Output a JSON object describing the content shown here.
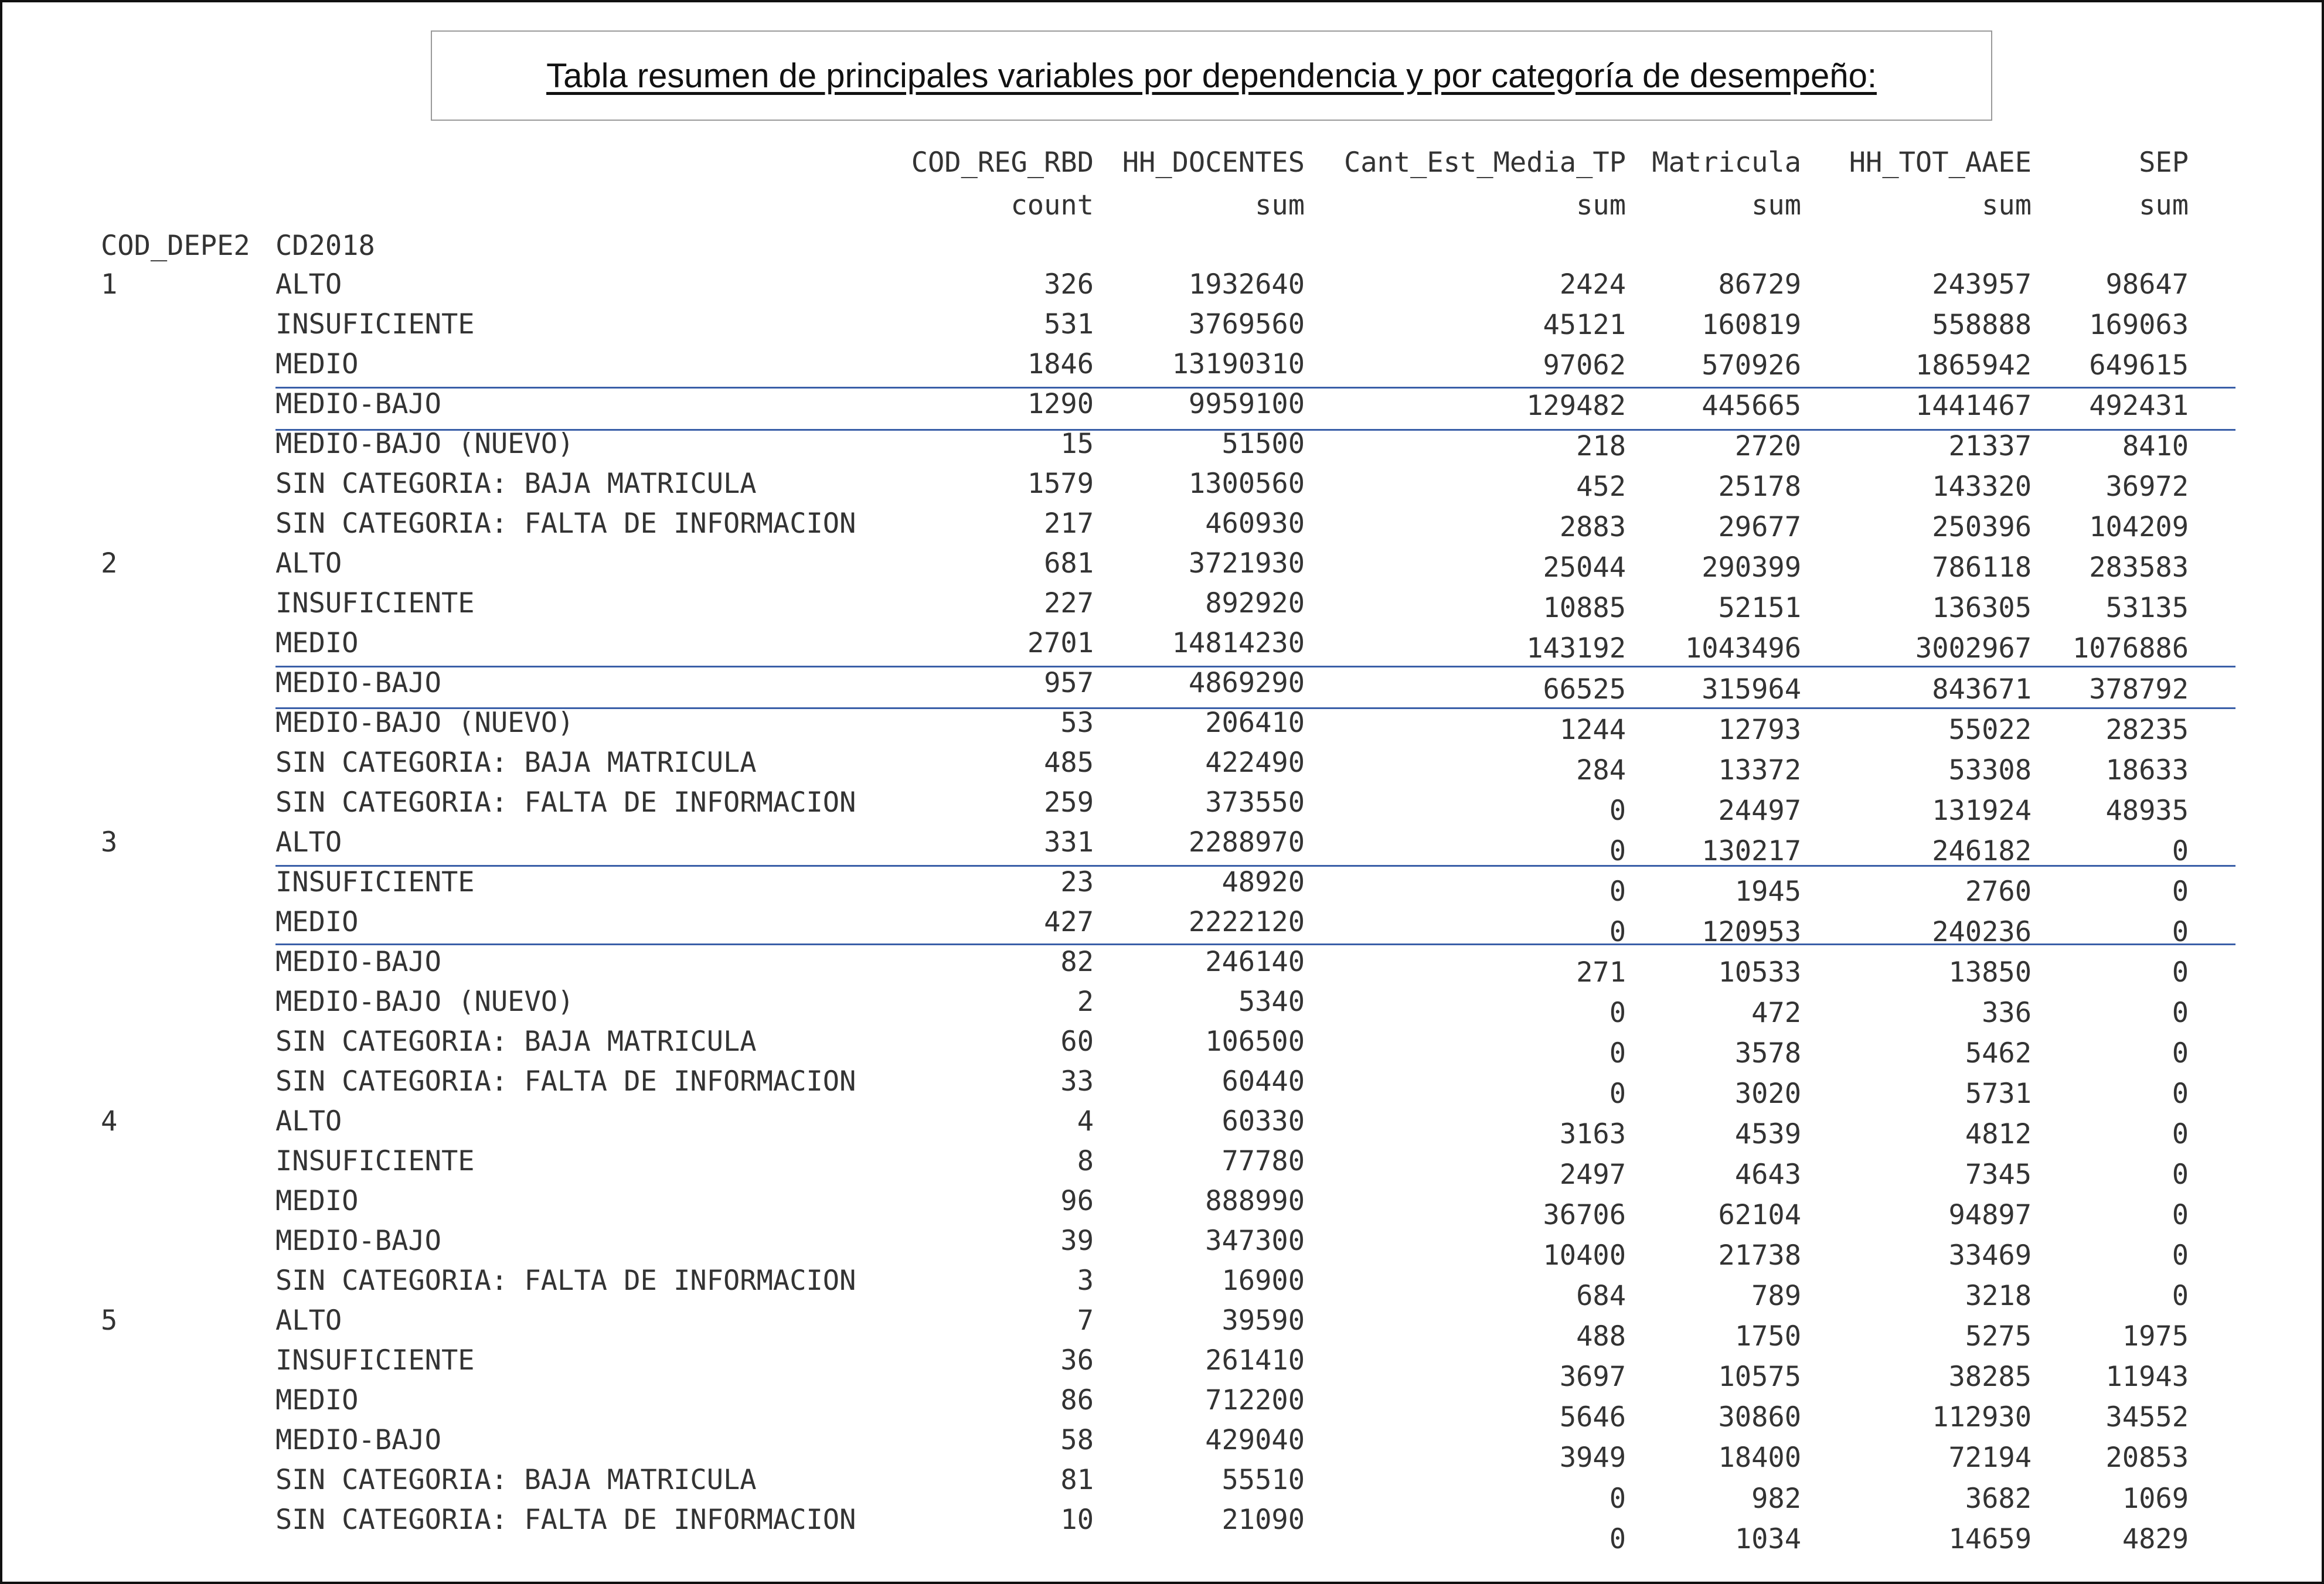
{
  "title": "Tabla resumen de principales variables por dependencia y por categoría de desempeño:",
  "columns": [
    {
      "name": "COD_REG_RBD",
      "agg": "count"
    },
    {
      "name": "HH_DOCENTES",
      "agg": "sum"
    },
    {
      "name": "Cant_Est_Media_TP",
      "agg": "sum"
    },
    {
      "name": "Matricula",
      "agg": "sum"
    },
    {
      "name": "HH_TOT_AAEE",
      "agg": "sum"
    },
    {
      "name": "SEP",
      "agg": "sum"
    }
  ],
  "index_names": [
    "COD_DEPE2",
    "CD2018"
  ],
  "rows": [
    {
      "dep": "1",
      "cat": "ALTO",
      "values": [
        "326",
        "1932640",
        "2424",
        "86729",
        "243957",
        "98647"
      ]
    },
    {
      "dep": "",
      "cat": "INSUFICIENTE",
      "values": [
        "531",
        "3769560",
        "45121",
        "160819",
        "558888",
        "169063"
      ]
    },
    {
      "dep": "",
      "cat": "MEDIO",
      "values": [
        "1846",
        "13190310",
        "97062",
        "570926",
        "1865942",
        "649615"
      ]
    },
    {
      "dep": "",
      "cat": "MEDIO-BAJO",
      "values": [
        "1290",
        "9959100",
        "129482",
        "445665",
        "1441467",
        "492431"
      ]
    },
    {
      "dep": "",
      "cat": "MEDIO-BAJO (NUEVO)",
      "values": [
        "15",
        "51500",
        "218",
        "2720",
        "21337",
        "8410"
      ]
    },
    {
      "dep": "",
      "cat": "SIN CATEGORIA: BAJA MATRICULA",
      "values": [
        "1579",
        "1300560",
        "452",
        "25178",
        "143320",
        "36972"
      ]
    },
    {
      "dep": "",
      "cat": "SIN CATEGORIA: FALTA DE INFORMACION",
      "values": [
        "217",
        "460930",
        "2883",
        "29677",
        "250396",
        "104209"
      ]
    },
    {
      "dep": "2",
      "cat": "ALTO",
      "values": [
        "681",
        "3721930",
        "25044",
        "290399",
        "786118",
        "283583"
      ]
    },
    {
      "dep": "",
      "cat": "INSUFICIENTE",
      "values": [
        "227",
        "892920",
        "10885",
        "52151",
        "136305",
        "53135"
      ]
    },
    {
      "dep": "",
      "cat": "MEDIO",
      "values": [
        "2701",
        "14814230",
        "143192",
        "1043496",
        "3002967",
        "1076886"
      ]
    },
    {
      "dep": "",
      "cat": "MEDIO-BAJO",
      "values": [
        "957",
        "4869290",
        "66525",
        "315964",
        "843671",
        "378792"
      ]
    },
    {
      "dep": "",
      "cat": "MEDIO-BAJO (NUEVO)",
      "values": [
        "53",
        "206410",
        "1244",
        "12793",
        "55022",
        "28235"
      ]
    },
    {
      "dep": "",
      "cat": "SIN CATEGORIA: BAJA MATRICULA",
      "values": [
        "485",
        "422490",
        "284",
        "13372",
        "53308",
        "18633"
      ]
    },
    {
      "dep": "",
      "cat": "SIN CATEGORIA: FALTA DE INFORMACION",
      "values": [
        "259",
        "373550",
        "0",
        "24497",
        "131924",
        "48935"
      ]
    },
    {
      "dep": "3",
      "cat": "ALTO",
      "values": [
        "331",
        "2288970",
        "0",
        "130217",
        "246182",
        "0"
      ]
    },
    {
      "dep": "",
      "cat": "INSUFICIENTE",
      "values": [
        "23",
        "48920",
        "0",
        "1945",
        "2760",
        "0"
      ]
    },
    {
      "dep": "",
      "cat": "MEDIO",
      "values": [
        "427",
        "2222120",
        "0",
        "120953",
        "240236",
        "0"
      ]
    },
    {
      "dep": "",
      "cat": "MEDIO-BAJO",
      "values": [
        "82",
        "246140",
        "271",
        "10533",
        "13850",
        "0"
      ]
    },
    {
      "dep": "",
      "cat": "MEDIO-BAJO (NUEVO)",
      "values": [
        "2",
        "5340",
        "0",
        "472",
        "336",
        "0"
      ]
    },
    {
      "dep": "",
      "cat": "SIN CATEGORIA: BAJA MATRICULA",
      "values": [
        "60",
        "106500",
        "0",
        "3578",
        "5462",
        "0"
      ]
    },
    {
      "dep": "",
      "cat": "SIN CATEGORIA: FALTA DE INFORMACION",
      "values": [
        "33",
        "60440",
        "0",
        "3020",
        "5731",
        "0"
      ]
    },
    {
      "dep": "4",
      "cat": "ALTO",
      "values": [
        "4",
        "60330",
        "3163",
        "4539",
        "4812",
        "0"
      ]
    },
    {
      "dep": "",
      "cat": "INSUFICIENTE",
      "values": [
        "8",
        "77780",
        "2497",
        "4643",
        "7345",
        "0"
      ]
    },
    {
      "dep": "",
      "cat": "MEDIO",
      "values": [
        "96",
        "888990",
        "36706",
        "62104",
        "94897",
        "0"
      ]
    },
    {
      "dep": "",
      "cat": "MEDIO-BAJO",
      "values": [
        "39",
        "347300",
        "10400",
        "21738",
        "33469",
        "0"
      ]
    },
    {
      "dep": "",
      "cat": "SIN CATEGORIA: FALTA DE INFORMACION",
      "values": [
        "3",
        "16900",
        "684",
        "789",
        "3218",
        "0"
      ]
    },
    {
      "dep": "5",
      "cat": "ALTO",
      "values": [
        "7",
        "39590",
        "488",
        "1750",
        "5275",
        "1975"
      ]
    },
    {
      "dep": "",
      "cat": "INSUFICIENTE",
      "values": [
        "36",
        "261410",
        "3697",
        "10575",
        "38285",
        "11943"
      ]
    },
    {
      "dep": "",
      "cat": "MEDIO",
      "values": [
        "86",
        "712200",
        "5646",
        "30860",
        "112930",
        "34552"
      ]
    },
    {
      "dep": "",
      "cat": "MEDIO-BAJO",
      "values": [
        "58",
        "429040",
        "3949",
        "18400",
        "72194",
        "20853"
      ]
    },
    {
      "dep": "",
      "cat": "SIN CATEGORIA: BAJA MATRICULA",
      "values": [
        "81",
        "55510",
        "0",
        "982",
        "3682",
        "1069"
      ]
    },
    {
      "dep": "",
      "cat": "SIN CATEGORIA: FALTA DE INFORMACION",
      "values": [
        "10",
        "21090",
        "0",
        "1034",
        "14659",
        "4829"
      ]
    }
  ]
}
